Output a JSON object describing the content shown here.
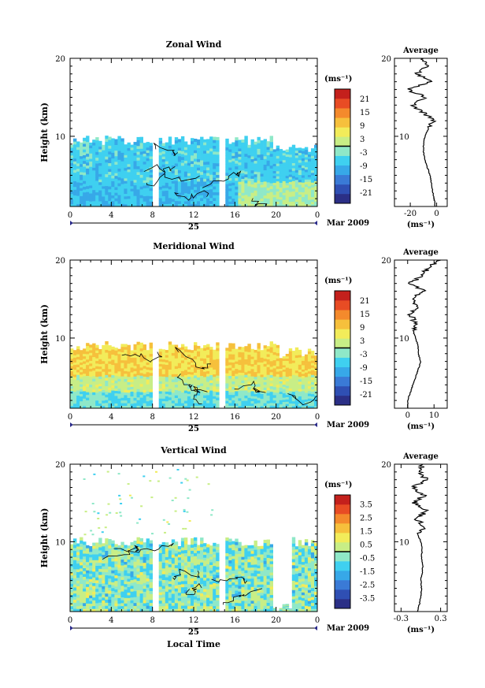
{
  "chart_data": [
    {
      "type": "heatmap",
      "title": "Zonal Wind",
      "ylabel": "Height (km)",
      "xlabel": "",
      "ylim": [
        1,
        20
      ],
      "xlim": [
        0,
        24
      ],
      "y_ticks": [
        "20",
        "10"
      ],
      "x_ticks": [
        "0",
        "4",
        "8",
        "12",
        "16",
        "20",
        "0"
      ],
      "day_label": "25",
      "month_label": "Mar 2009",
      "colorbar": {
        "unit": "(ms⁻¹)",
        "labels": [
          "21",
          "15",
          "9",
          "3",
          "-3",
          "-9",
          "-15",
          "-21"
        ],
        "range": [
          -24,
          24
        ]
      },
      "field_top_km": 9.5,
      "data_gaps_hour": [
        [
          8.2,
          8.6
        ],
        [
          14.5,
          14.8
        ]
      ],
      "average_profile": {
        "title": "Average",
        "xlabel": "(ms⁻¹)",
        "x_ticks": [
          "-20",
          "0"
        ],
        "xlim": [
          -32,
          8
        ],
        "height_km": [
          1,
          2,
          3,
          4,
          5,
          6,
          7,
          8,
          9,
          10,
          11,
          12,
          13,
          14,
          15,
          16,
          17,
          18,
          19,
          20
        ],
        "values": [
          -1,
          -2,
          -3,
          -4,
          -5,
          -7,
          -9,
          -10,
          -10,
          -9,
          -6,
          -3,
          -10,
          -18,
          -8,
          -22,
          -4,
          -15,
          -6,
          -12
        ]
      }
    },
    {
      "type": "heatmap",
      "title": "Meridional Wind",
      "ylabel": "Height (km)",
      "xlabel": "",
      "ylim": [
        1,
        20
      ],
      "xlim": [
        0,
        24
      ],
      "y_ticks": [
        "20",
        "10"
      ],
      "x_ticks": [
        "0",
        "4",
        "8",
        "12",
        "16",
        "20",
        "0"
      ],
      "day_label": "25",
      "month_label": "Mar 2009",
      "colorbar": {
        "unit": "(ms⁻¹)",
        "labels": [
          "21",
          "15",
          "9",
          "3",
          "-3",
          "-9",
          "-15",
          "-21"
        ],
        "range": [
          -24,
          24
        ]
      },
      "field_top_km": 9.0,
      "data_gaps_hour": [
        [
          8.2,
          8.6
        ],
        [
          14.5,
          14.8
        ]
      ],
      "average_profile": {
        "title": "Average",
        "xlabel": "(ms⁻¹)",
        "x_ticks": [
          "0",
          "10"
        ],
        "xlim": [
          -5,
          15
        ],
        "height_km": [
          1,
          2,
          3,
          4,
          5,
          6,
          7,
          8,
          9,
          10,
          11,
          12,
          13,
          14,
          15,
          16,
          17,
          18,
          19,
          20
        ],
        "values": [
          0,
          0,
          1,
          2,
          3,
          4,
          5,
          4,
          4,
          3,
          2,
          3,
          1,
          4,
          2,
          6,
          1,
          5,
          8,
          12
        ]
      }
    },
    {
      "type": "heatmap",
      "title": "Vertical Wind",
      "ylabel": "Height (km)",
      "xlabel": "Local Time",
      "ylim": [
        1,
        20
      ],
      "xlim": [
        0,
        24
      ],
      "y_ticks": [
        "20",
        "10"
      ],
      "x_ticks": [
        "0",
        "4",
        "8",
        "12",
        "16",
        "20",
        "0"
      ],
      "day_label": "25",
      "month_label": "Mar 2009",
      "colorbar": {
        "unit": "(ms⁻¹)",
        "labels": [
          "3.5",
          "2.5",
          "1.5",
          "0.5",
          "-0.5",
          "-1.5",
          "-2.5",
          "-3.5"
        ],
        "range": [
          -4,
          4
        ]
      },
      "field_top_km": 10.0,
      "data_gaps_hour": [
        [
          8.2,
          8.6
        ],
        [
          14.5,
          14.8
        ]
      ],
      "average_profile": {
        "title": "Average",
        "xlabel": "(ms⁻¹)",
        "x_ticks": [
          "-0.3",
          "0.3"
        ],
        "xlim": [
          -0.4,
          0.4
        ],
        "height_km": [
          1,
          2,
          3,
          4,
          5,
          6,
          7,
          8,
          9,
          10,
          11,
          12,
          13,
          14,
          15,
          16,
          17,
          18,
          19,
          20
        ],
        "values": [
          -0.05,
          -0.02,
          0.0,
          0.01,
          0.0,
          0.02,
          0.03,
          0.01,
          0.02,
          0.0,
          -0.05,
          0.06,
          -0.08,
          0.1,
          -0.1,
          0.05,
          -0.12,
          0.08,
          -0.02,
          0.02
        ]
      }
    }
  ]
}
